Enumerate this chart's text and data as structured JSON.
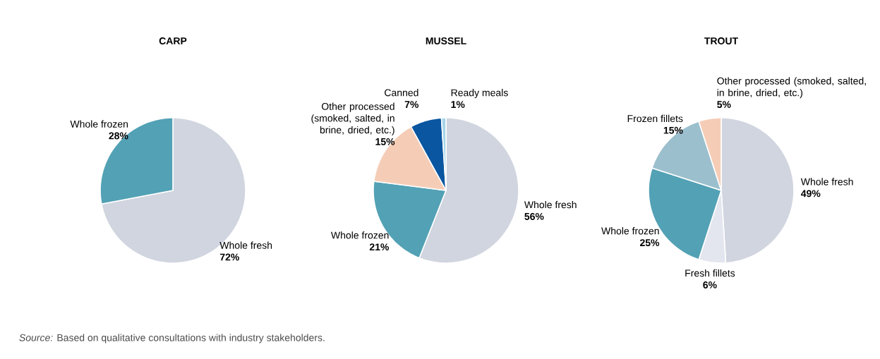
{
  "chart_data": [
    {
      "type": "pie",
      "title": "CARP",
      "categories": [
        "Whole fresh",
        "Whole frozen"
      ],
      "values": [
        72,
        28
      ],
      "value_labels": [
        "72%",
        "28%"
      ],
      "colors": [
        "#d1d5e0",
        "#53a1b5"
      ],
      "annotations": [
        "*Source:* Based on qualitative consultations with industry stakeholders."
      ]
    },
    {
      "type": "pie",
      "title": "MUSSEL",
      "categories": [
        "Whole fresh",
        "Whole frozen",
        "Other processed (smoked, salted, in brine, dried, etc.)",
        "Canned",
        "Ready meals"
      ],
      "values": [
        56,
        21,
        15,
        7,
        1
      ],
      "value_labels": [
        "56%",
        "21%",
        "15%",
        "7%",
        "1%"
      ],
      "colors": [
        "#d1d5e0",
        "#53a1b5",
        "#f5cdb7",
        "#0a56a0",
        "#a6d5e8"
      ]
    },
    {
      "type": "pie",
      "title": "TROUT",
      "categories": [
        "Whole fresh",
        "Fresh fillets",
        "Whole frozen",
        "Frozen fillets",
        "Other processed (smoked, salted, in brine, dried, etc.)"
      ],
      "values": [
        49,
        6,
        25,
        15,
        5
      ],
      "value_labels": [
        "49%",
        "6%",
        "25%",
        "15%",
        "5%"
      ],
      "colors": [
        "#d1d5e0",
        "#e3e6ef",
        "#53a1b5",
        "#9bbfcd",
        "#f5cdb7"
      ]
    }
  ]
}
